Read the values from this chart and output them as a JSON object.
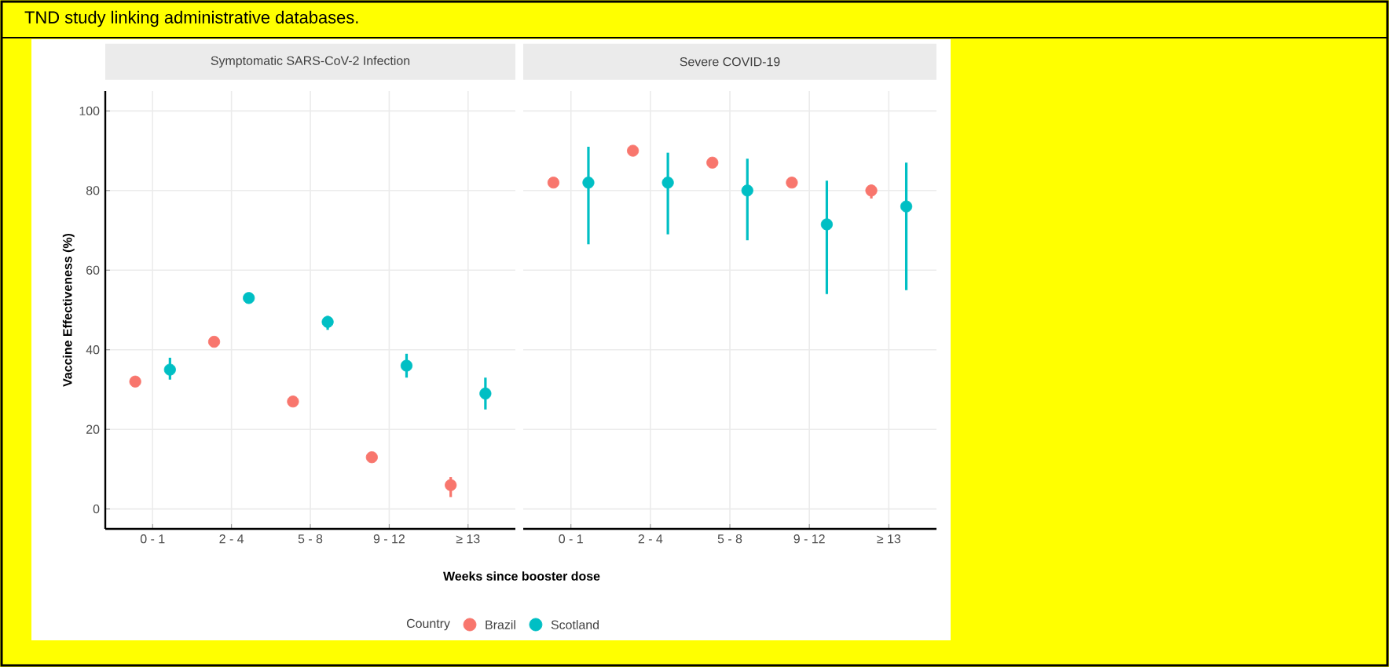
{
  "chart_data": [
    {
      "type": "scatter",
      "title": "Symptomatic SARS-CoV-2 Infection",
      "xlabel": "Weeks since booster dose",
      "ylabel": "Vaccine Effectiveness (%)",
      "legend_title": "Country",
      "legend": "bottom",
      "annotations": [
        "TND study linking administrative databases."
      ],
      "categories": [
        "0 - 1",
        "2 - 4",
        "5 - 8",
        "9 - 12",
        "≥ 13"
      ],
      "ylim": [
        -5,
        105
      ],
      "yticks": [
        0,
        20,
        40,
        60,
        80,
        100
      ],
      "grid": true,
      "marker": "circle",
      "series": [
        {
          "name": "Brazil",
          "color": "#f8766d",
          "values": [
            32,
            42,
            27,
            13,
            6
          ],
          "errors": [
            null,
            null,
            null,
            null,
            [
              3,
              8
            ]
          ]
        },
        {
          "name": "Scotland",
          "color": "#00bfc4",
          "values": [
            35,
            53,
            47,
            36,
            29
          ],
          "errors": [
            [
              32.5,
              38
            ],
            null,
            [
              45,
              48.5
            ],
            [
              33,
              39
            ],
            [
              25,
              33
            ]
          ]
        }
      ]
    },
    {
      "type": "scatter",
      "title": "Severe COVID-19",
      "categories": [
        "0 - 1",
        "2 - 4",
        "5 - 8",
        "9 - 12",
        "≥ 13"
      ],
      "ylim": [
        -5,
        105
      ],
      "yticks": [
        0,
        20,
        40,
        60,
        80,
        100
      ],
      "tick_labels": "x",
      "grid": true,
      "marker": "circle",
      "series": [
        {
          "color": "#f8766d",
          "values": [
            82,
            90,
            87,
            82,
            80
          ],
          "errors": [
            null,
            null,
            null,
            null,
            [
              78,
              81.5
            ]
          ]
        },
        {
          "color": "#00bfc4",
          "values": [
            82,
            82,
            80,
            71.5,
            76
          ],
          "errors": [
            [
              66.5,
              91
            ],
            [
              69,
              89.5
            ],
            [
              67.5,
              88
            ],
            [
              54,
              82.5
            ],
            [
              55,
              87
            ]
          ]
        }
      ]
    }
  ]
}
